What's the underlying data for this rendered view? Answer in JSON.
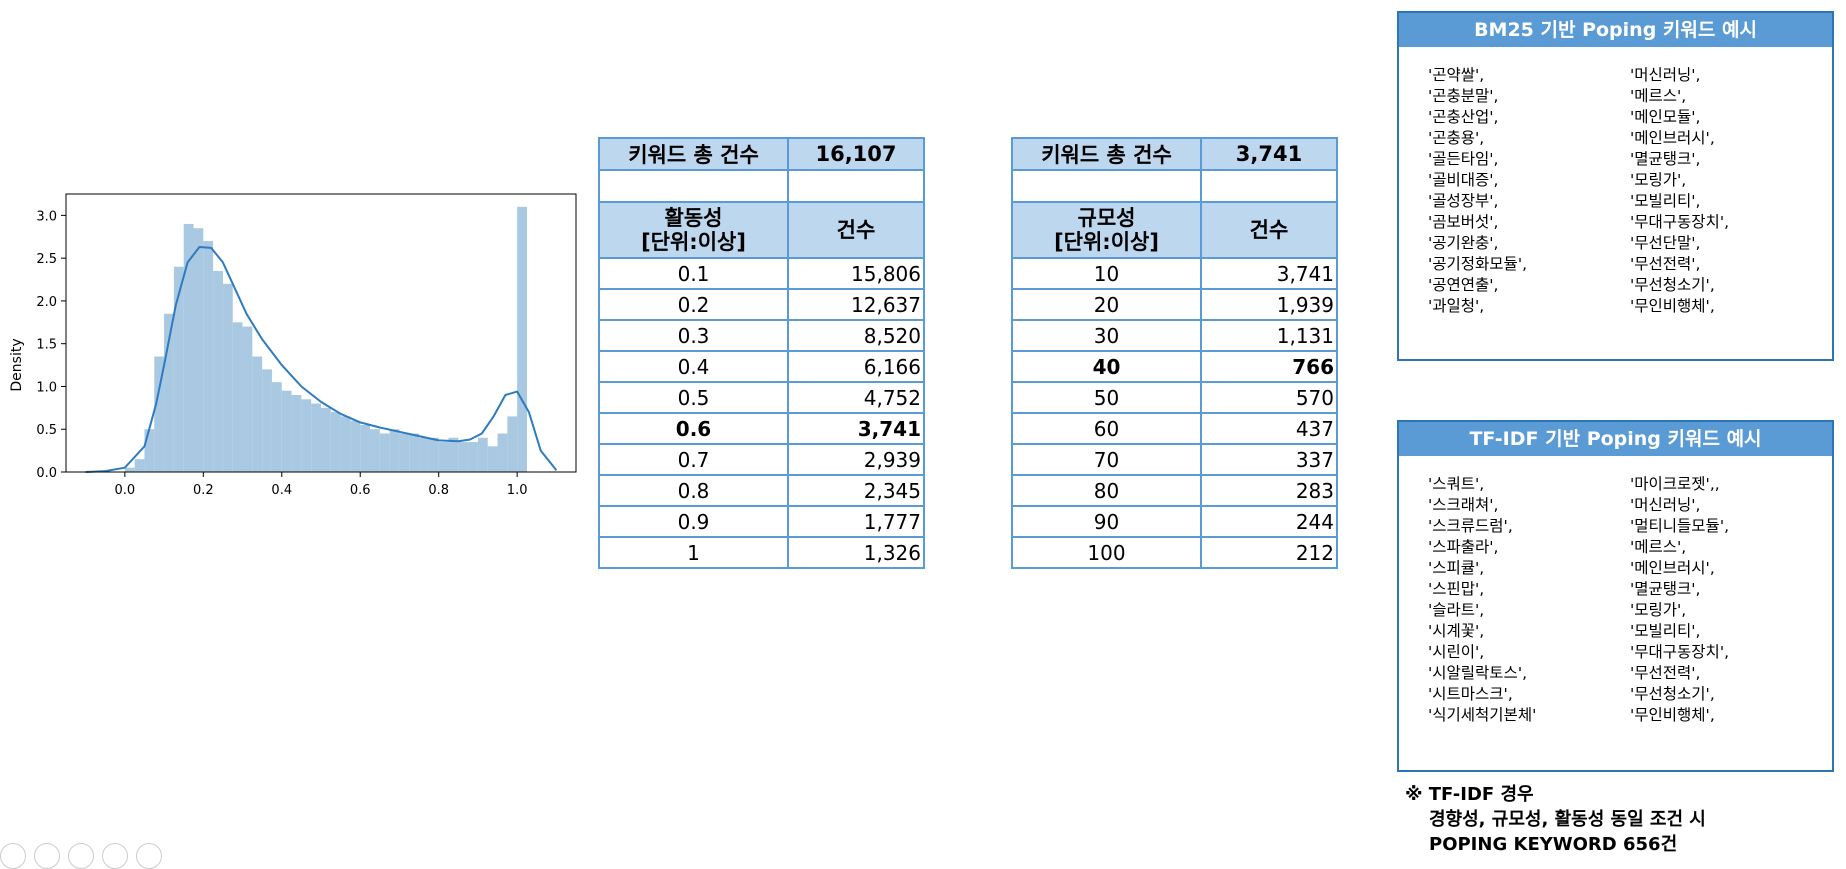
{
  "chart_data": {
    "type": "bar",
    "ylabel": "Density",
    "xlim": [
      -0.15,
      1.15
    ],
    "ylim": [
      0,
      3.25
    ],
    "xticks": [
      "0.0",
      "0.2",
      "0.4",
      "0.6",
      "0.8",
      "1.0"
    ],
    "xtick_values": [
      0.0,
      0.2,
      0.4,
      0.6,
      0.8,
      1.0
    ],
    "yticks": [
      "0.0",
      "0.5",
      "1.0",
      "1.5",
      "2.0",
      "2.5",
      "3.0"
    ],
    "ytick_values": [
      0,
      0.5,
      1.0,
      1.5,
      2.0,
      2.5,
      3.0
    ],
    "bin_width": 0.025,
    "bins_start": 0.0,
    "values": [
      0.05,
      0.15,
      0.5,
      1.35,
      1.85,
      2.4,
      2.9,
      2.85,
      2.7,
      2.35,
      2.2,
      1.75,
      1.7,
      1.35,
      1.2,
      1.05,
      0.95,
      0.9,
      0.85,
      0.8,
      0.75,
      0.7,
      0.65,
      0.6,
      0.55,
      0.5,
      0.45,
      0.5,
      0.45,
      0.45,
      0.4,
      0.4,
      0.35,
      0.4,
      0.35,
      0.35,
      0.4,
      0.3,
      0.45,
      0.65,
      3.1
    ],
    "kde_x": [
      -0.1,
      -0.05,
      0.0,
      0.05,
      0.08,
      0.1,
      0.13,
      0.16,
      0.19,
      0.22,
      0.25,
      0.28,
      0.31,
      0.35,
      0.4,
      0.45,
      0.5,
      0.55,
      0.6,
      0.65,
      0.7,
      0.75,
      0.8,
      0.85,
      0.88,
      0.91,
      0.94,
      0.97,
      1.0,
      1.03,
      1.06,
      1.1
    ],
    "kde_y": [
      0.0,
      0.01,
      0.05,
      0.3,
      0.8,
      1.25,
      1.95,
      2.45,
      2.63,
      2.62,
      2.45,
      2.15,
      1.85,
      1.55,
      1.25,
      1.0,
      0.82,
      0.68,
      0.58,
      0.52,
      0.47,
      0.42,
      0.37,
      0.36,
      0.38,
      0.45,
      0.65,
      0.9,
      0.94,
      0.7,
      0.25,
      0.02
    ]
  },
  "table1": {
    "total_label": "키워드 총 건수",
    "total_value": "16,107",
    "col1_header_line1": "활동성",
    "col1_header_line2": "[단위:이상]",
    "col2_header": "건수",
    "rows": [
      {
        "k": "0.1",
        "v": "15,806"
      },
      {
        "k": "0.2",
        "v": "12,637"
      },
      {
        "k": "0.3",
        "v": "8,520"
      },
      {
        "k": "0.4",
        "v": "6,166"
      },
      {
        "k": "0.5",
        "v": "4,752"
      },
      {
        "k": "0.6",
        "v": "3,741"
      },
      {
        "k": "0.7",
        "v": "2,939"
      },
      {
        "k": "0.8",
        "v": "2,345"
      },
      {
        "k": "0.9",
        "v": "1,777"
      },
      {
        "k": "1",
        "v": "1,326"
      }
    ]
  },
  "table2": {
    "total_label": "키워드 총 건수",
    "total_value": "3,741",
    "col1_header_line1": "규모성",
    "col1_header_line2": "[단위:이상]",
    "col2_header": "건수",
    "rows": [
      {
        "k": "10",
        "v": "3,741"
      },
      {
        "k": "20",
        "v": "1,939"
      },
      {
        "k": "30",
        "v": "1,131"
      },
      {
        "k": "40",
        "v": "766"
      },
      {
        "k": "50",
        "v": "570"
      },
      {
        "k": "60",
        "v": "437"
      },
      {
        "k": "70",
        "v": "337"
      },
      {
        "k": "80",
        "v": "283"
      },
      {
        "k": "90",
        "v": "244"
      },
      {
        "k": "100",
        "v": "212"
      }
    ]
  },
  "bm25": {
    "title": "BM25 기반 Poping 키워드 예시",
    "left": [
      "'곤약쌀',",
      "'곤충분말',",
      "'곤충산업',",
      "'곤충용',",
      "'골든타임',",
      "'골비대증',",
      "'골성장부',",
      "'곰보버섯',",
      "'공기완충',",
      "'공기정화모듈',",
      "'공연연출',",
      "'과일청',"
    ],
    "right": [
      "'머신러닝',",
      "'메르스',",
      "'메인모듈',",
      "'메인브러시',",
      "'멸균탱크',",
      "'모링가',",
      "'모빌리티',",
      "'무대구동장치',",
      "'무선단말',",
      "'무선전력',",
      "'무선청소기',",
      "'무인비행체',"
    ]
  },
  "tfidf": {
    "title": "TF-IDF 기반 Poping 키워드 예시",
    "left": [
      "'스쿼트',",
      "'스크래쳐',",
      "'스크류드럼',",
      "'스파출라',",
      "'스피큘',",
      "'스핀맙',",
      "'슬라트',",
      "'시계꽃',",
      "'시린이',",
      "'시알릴락토스',",
      "'시트마스크',",
      "'식기세척기본체'"
    ],
    "right": [
      "'마이크로젯',,",
      "'머신러닝',",
      "'멀티니들모듈',",
      "'메르스',",
      "'메인브러시',",
      "'멸균탱크',",
      "'모링가',",
      "'모빌리티',",
      "'무대구동장치',",
      "'무선전력',",
      "'무선청소기',",
      "'무인비행체',"
    ]
  },
  "note": {
    "line1": "※ TF-IDF 경우",
    "line2": "경향성, 규모성, 활동성 동일 조건 시",
    "line3": "POPING KEYWORD 656건"
  },
  "colors": {
    "bar": "#a9c8e2",
    "kde": "#2f7bbf",
    "table_border": "#5b9bd5",
    "header_fill": "#bdd7ee",
    "box_header": "#5b9bd5"
  }
}
